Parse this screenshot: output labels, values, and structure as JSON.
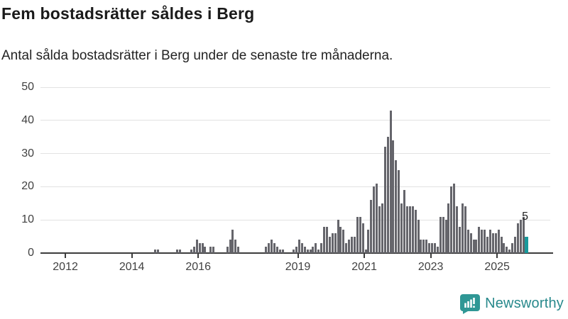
{
  "title": "Fem bostadsrätter såldes i Berg",
  "subtitle": "Antal sålda bostadsrätter i Berg under de senaste tre månaderna.",
  "annotation": {
    "highlight_value_label": "5"
  },
  "logo": {
    "brand": "Newsworthy",
    "icon": "newsworthy-speech-bubble-bar-chart-icon"
  },
  "colors": {
    "bar": "#65656b",
    "highlight": "#199a9c",
    "grid": "#e2e2e2",
    "axis": "#3c3c3c",
    "title_text": "#1a1a1a",
    "tick_text": "#414141",
    "logo_icon": "#2f9795",
    "logo_text": "#28898c"
  },
  "chart_data": {
    "type": "bar",
    "title": "Fem bostadsrätter såldes i Berg",
    "subtitle": "Antal sålda bostadsrätter i Berg under de senaste tre månaderna.",
    "xlabel": "",
    "ylabel": "",
    "bar_period": "month",
    "x_start": "2011-04",
    "x_end": "2025-11",
    "ylim": [
      0,
      50
    ],
    "grid": true,
    "legend": false,
    "y_ticks": [
      0,
      10,
      20,
      30,
      40,
      50
    ],
    "x_tick_years": [
      2012,
      2014,
      2016,
      2019,
      2021,
      2023,
      2025
    ],
    "values": [
      0,
      0,
      0,
      0,
      0,
      0,
      0,
      0,
      0,
      0,
      0,
      0,
      0,
      0,
      0,
      0,
      0,
      0,
      0,
      0,
      0,
      0,
      0,
      0,
      0,
      0,
      0,
      0,
      0,
      0,
      0,
      0,
      0,
      0,
      0,
      0,
      0,
      0,
      0,
      0,
      0,
      1,
      1,
      0,
      0,
      0,
      0,
      0,
      0,
      1,
      1,
      0,
      0,
      0,
      1,
      2,
      4,
      3,
      3,
      2,
      0,
      2,
      2,
      0,
      0,
      0,
      0,
      2,
      4,
      7,
      4,
      2,
      0,
      0,
      0,
      0,
      0,
      0,
      0,
      0,
      0,
      2,
      3,
      4,
      3,
      2,
      1,
      1,
      0,
      0,
      0,
      1,
      2,
      4,
      3,
      2,
      1,
      1,
      2,
      3,
      1,
      3,
      8,
      8,
      5,
      6,
      6,
      10,
      8,
      7,
      3,
      4,
      5,
      5,
      11,
      11,
      9,
      1,
      7,
      16,
      20,
      21,
      14,
      15,
      32,
      35,
      43,
      34,
      28,
      25,
      15,
      19,
      14,
      14,
      14,
      13,
      10,
      4,
      4,
      4,
      3,
      3,
      3,
      2,
      11,
      11,
      10,
      15,
      20,
      21,
      14,
      8,
      15,
      14,
      7,
      6,
      4,
      4,
      8,
      7,
      7,
      5,
      7,
      6,
      6,
      7,
      5,
      3,
      2,
      1,
      3,
      5,
      9,
      10,
      11,
      5
    ],
    "highlight": {
      "index": 175,
      "value": 5,
      "label": "5"
    }
  }
}
